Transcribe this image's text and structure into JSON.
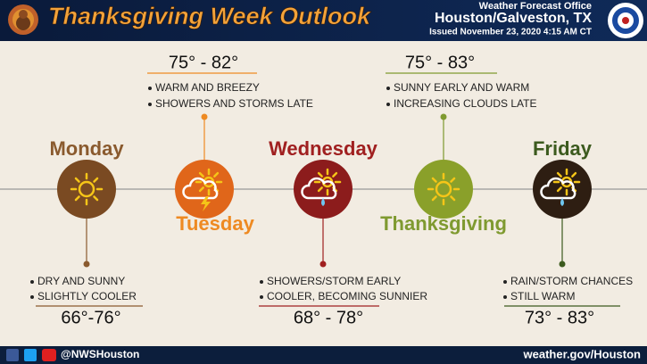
{
  "header": {
    "title": "Thanksgiving Week Outlook",
    "office": "Weather Forecast Office",
    "location": "Houston/Galveston, TX",
    "issued": "Issued November 23, 2020 4:15 AM CT"
  },
  "days": [
    {
      "name": "Monday",
      "temps": "66°-76°",
      "bullets": [
        "DRY AND SUNNY",
        "SLIGHTLY COOLER"
      ]
    },
    {
      "name": "Tuesday",
      "temps": "75° - 82°",
      "bullets": [
        "WARM AND BREEZY",
        "SHOWERS AND STORMS LATE"
      ]
    },
    {
      "name": "Wednesday",
      "temps": "68° - 78°",
      "bullets": [
        "SHOWERS/STORM EARLY",
        "COOLER, BECOMING SUNNIER"
      ]
    },
    {
      "name": "Thanksgiving",
      "temps": "75° - 83°",
      "bullets": [
        "SUNNY EARLY AND WARM",
        "INCREASING CLOUDS LATE"
      ]
    },
    {
      "name": "Friday",
      "temps": "73° - 83°",
      "bullets": [
        "RAIN/STORM CHANCES",
        "STILL WARM"
      ]
    }
  ],
  "footer": {
    "handle": "@NWSHouston",
    "url": "weather.gov/Houston"
  }
}
